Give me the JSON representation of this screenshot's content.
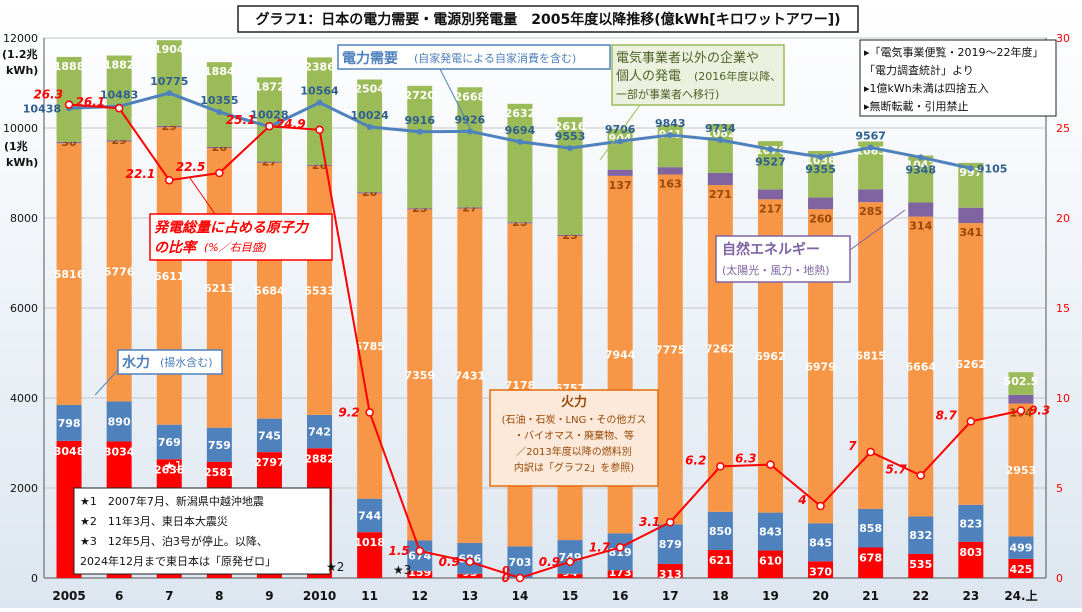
{
  "title": "グラフ1：日本の電力需要・電源別発電量　2005年度以降推移(億kWh[キロワットアワー])",
  "chart_data": {
    "type": "bar",
    "categories": [
      "2005",
      "6",
      "7",
      "8",
      "9",
      "2010",
      "11",
      "12",
      "13",
      "14",
      "15",
      "16",
      "17",
      "18",
      "19",
      "20",
      "21",
      "22",
      "23",
      "24.上"
    ],
    "ylim": [
      0,
      12000
    ],
    "y2lim": [
      0,
      30
    ],
    "y_ticks": [
      "0",
      "2000",
      "4000",
      "6000",
      "8000",
      "10000",
      "12000"
    ],
    "y2_ticks": [
      "0",
      "5",
      "10",
      "15",
      "20",
      "25",
      "30"
    ],
    "left_axis_unit_top": [
      "(1.2兆",
      "kWh)"
    ],
    "left_axis_unit_mid": [
      "(1兆",
      "kWh)"
    ],
    "series": [
      {
        "key": "nuclear",
        "color": "#ff0000",
        "values": [
          3048,
          3034,
          2638,
          2581,
          2797,
          2882,
          1018,
          159,
          93,
          0,
          94,
          173,
          313,
          621,
          610,
          370,
          678,
          535,
          803,
          425
        ]
      },
      {
        "key": "hydro",
        "color": "#4f81bd",
        "values": [
          798,
          890,
          769,
          759,
          745,
          742,
          744,
          674,
          686,
          703,
          749,
          819,
          879,
          850,
          843,
          845,
          858,
          832,
          823,
          499
        ]
      },
      {
        "key": "thermal",
        "color": "#f79646",
        "values": [
          5816,
          5776,
          6611,
          6213,
          5684,
          5533,
          6785,
          7359,
          7431,
          7178,
          6757,
          7944,
          7775,
          7262,
          6962,
          6979,
          6815,
          6664,
          6262,
          2953
        ]
      },
      {
        "key": "renewable",
        "color": "#8064a2",
        "values": [
          30,
          29,
          29,
          26,
          27,
          26,
          26,
          25,
          27,
          25,
          25,
          137,
          163,
          271,
          217,
          260,
          285,
          314,
          341,
          194
        ]
      },
      {
        "key": "self",
        "color": "#9bbb59",
        "values": [
          1888,
          1882,
          1904,
          1884,
          1872,
          2386,
          2504,
          2720,
          2668,
          2632,
          2616,
          904,
          941,
          1082,
          1076,
          1036,
          1065,
          1043,
          997,
          502.5
        ]
      }
    ],
    "bar_labels": {
      "nuclear": [
        "3048",
        "3034",
        "2638",
        "2581",
        "2797",
        "2882",
        "1018",
        "159",
        "93",
        "",
        "94",
        "173",
        "313",
        "621",
        "610",
        "370",
        "678",
        "535",
        "803",
        "425"
      ],
      "hydro": [
        "798",
        "890",
        "769",
        "759",
        "745",
        "742",
        "744",
        "674",
        "686",
        "703",
        "749",
        "819",
        "879",
        "850",
        "843",
        "845",
        "858",
        "832",
        "823",
        "499"
      ],
      "thermal": [
        "5816",
        "5776",
        "6611",
        "6213",
        "5684",
        "5533",
        "6785",
        "7359",
        "7431",
        "7178",
        "6757",
        "7944",
        "7775",
        "7262",
        "6962",
        "6979",
        "6815",
        "6664",
        "6262",
        "2953"
      ],
      "renewable": [
        "30",
        "29",
        "29",
        "26",
        "27",
        "26",
        "26",
        "25",
        "27",
        "25",
        "25",
        "137",
        "163",
        "271",
        "217",
        "260",
        "285",
        "314",
        "341",
        "194"
      ],
      "self": [
        "1888",
        "1882",
        "1904",
        "1884",
        "1872",
        "2386",
        "2504",
        "2720",
        "2668",
        "2632",
        "2616",
        "904",
        "941",
        "1082",
        "1076",
        "1036",
        "1065",
        "1043",
        "997",
        "502.5"
      ]
    },
    "demand": {
      "color": "#4f81bd",
      "values": [
        10438,
        10483,
        10775,
        10355,
        10028,
        10564,
        10024,
        9916,
        9926,
        9694,
        9553,
        9706,
        9843,
        9734,
        9527,
        9355,
        9567,
        9348,
        9105,
        null
      ]
    },
    "nuclear_share": {
      "color": "#ff0000",
      "values": [
        26.3,
        26.1,
        22.1,
        22.5,
        25.1,
        24.9,
        9.2,
        1.5,
        0.9,
        0,
        0.9,
        1.7,
        3.1,
        6.2,
        6.3,
        4,
        7,
        5.7,
        8.7,
        9.3
      ],
      "labels": [
        "26.3",
        "26.1",
        "22.1",
        "22.5",
        "25.1",
        "24.9",
        "9.2",
        "1.5",
        "0.9",
        "0",
        "0.9",
        "1.7",
        "3.1",
        "6.2",
        "6.3",
        "4",
        "7",
        "5.7",
        "8.7",
        "9.3"
      ]
    },
    "zero_label": "0"
  },
  "annotations": {
    "demand": {
      "title": "電力需要",
      "note": "(自家発電による自家消費を含む)"
    },
    "self_gen": {
      "line1": "電気事業者以外の企業や",
      "line2a": "個人の発電",
      "line2b": "(2016年度以降、",
      "line3": "一部が事業者へ移行)"
    },
    "share": {
      "line1": "発電総量に占める原子力",
      "line2": "の比率",
      "line2b": "(%／右目盛)"
    },
    "hydro": {
      "title": "水力",
      "note": "(揚水含む)"
    },
    "renewable": {
      "title": "自然エネルギー",
      "note": "(太陽光・風力・地熱)"
    },
    "thermal": {
      "title": "火力",
      "line1": "(石油・石炭・LNG・その他ガス",
      "line2": "・バイオマス・廃棄物、等",
      "line3": "／2013年度以降の燃料別",
      "line4": "内訳は「グラフ2」を参照)"
    },
    "events": {
      "l1": "★1　2007年7月、新潟県中越沖地震",
      "l2": "★2　11年3月、東日本大震災",
      "l3": "★3　12年5月、泊3号が停止。以降、",
      "l4": "2024年12月まで東日本は「原発ゼロ」"
    },
    "markers": {
      "m1": "★1",
      "m2": "★2",
      "m3": "★3"
    },
    "source": {
      "l1": "▸「電気事業便覧・2019～22年度」",
      "l2": "「電力調査統計」より",
      "l3": "▸1億kWh未満は四捨五入",
      "l4": "▸無断転載・引用禁止"
    }
  }
}
